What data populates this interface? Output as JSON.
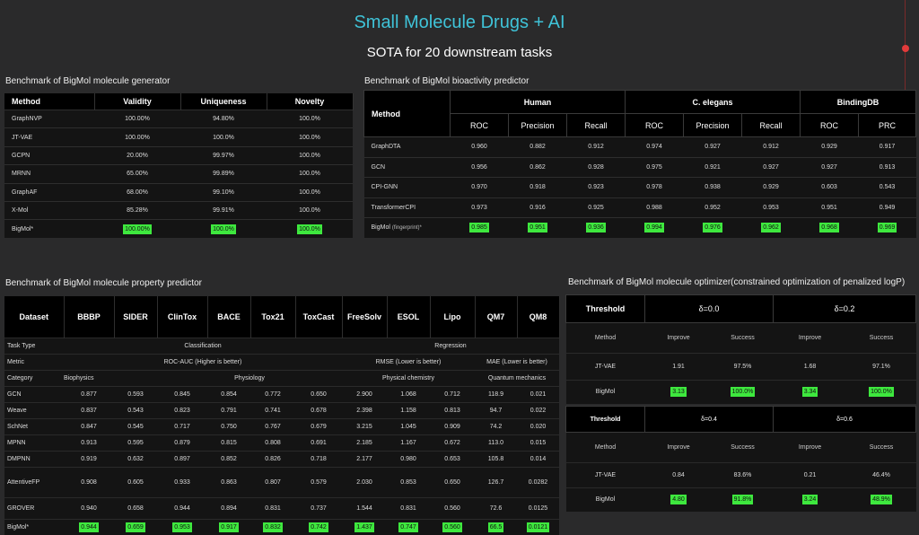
{
  "header": {
    "title": "Small Molecule Drugs + AI",
    "subtitle": "SOTA for 20 downstream tasks"
  },
  "colors": {
    "title": "#3fc3d8",
    "highlight": "#3ee83e",
    "scrubber": "#e23b3b"
  },
  "generator": {
    "label": "Benchmark of BigMol molecule generator",
    "columns": [
      "Method",
      "Validity",
      "Uniqueness",
      "Novelty"
    ],
    "rows": [
      {
        "cells": [
          "GraphNVP",
          "100.00%",
          "94.80%",
          "100.0%"
        ]
      },
      {
        "cells": [
          "JT-VAE",
          "100.00%",
          "100.0%",
          "100.0%"
        ]
      },
      {
        "cells": [
          "GCPN",
          "20.00%",
          "99.97%",
          "100.0%"
        ]
      },
      {
        "cells": [
          "MRNN",
          "65.00%",
          "99.89%",
          "100.0%"
        ]
      },
      {
        "cells": [
          "GraphAF",
          "68.00%",
          "99.10%",
          "100.0%"
        ]
      },
      {
        "cells": [
          "X-Mol",
          "85.28%",
          "99.91%",
          "100.0%"
        ]
      },
      {
        "cells": [
          "BigMol*",
          "100.00%",
          "100.0%",
          "100.0%"
        ]
      }
    ]
  },
  "bio": {
    "label": "Benchmark of BigMol bioactivity predictor",
    "method_header": "Method",
    "groups": [
      "Human",
      "C. elegans",
      "BindingDB"
    ],
    "metrics": [
      "ROC",
      "Precision",
      "Recall",
      "ROC",
      "Precision",
      "Recall",
      "ROC",
      "PRC"
    ],
    "rows": [
      {
        "cells": [
          "GraphDTA",
          "0.960",
          "0.882",
          "0.912",
          "0.974",
          "0.927",
          "0.912",
          "0.929",
          "0.917"
        ]
      },
      {
        "cells": [
          "GCN",
          "0.956",
          "0.862",
          "0.928",
          "0.975",
          "0.921",
          "0.927",
          "0.927",
          "0.913"
        ]
      },
      {
        "cells": [
          "CPI-GNN",
          "0.970",
          "0.918",
          "0.923",
          "0.978",
          "0.938",
          "0.929",
          "0.603",
          "0.543"
        ]
      },
      {
        "cells": [
          "TransformerCPI",
          "0.973",
          "0.916",
          "0.925",
          "0.988",
          "0.952",
          "0.953",
          "0.951",
          "0.949"
        ]
      }
    ],
    "bigmol": {
      "name": "BigMol",
      "suffix": "(fingerprint)*",
      "values": [
        "0.985",
        "0.951",
        "0.936",
        "0.994",
        "0.976",
        "0.962",
        "0.968",
        "0.969"
      ]
    }
  },
  "prop": {
    "label": "Benchmark of BigMol molecule property predictor",
    "columns": [
      "Dataset",
      "BBBP",
      "SIDER",
      "ClinTox",
      "BACE",
      "Tox21",
      "ToxCast",
      "FreeSolv",
      "ESOL",
      "Lipo",
      "QM7",
      "QM8"
    ],
    "task_type": {
      "label": "Task Type",
      "classification": "Classification",
      "regression": "Regression"
    },
    "metric": {
      "label": "Metric",
      "class_metric": "ROC-AUC (Higher is better)",
      "rmse": "RMSE (Lower is better)",
      "mae": "MAE (Lower is better)"
    },
    "category": {
      "label": "Category",
      "biophysics": "Biophysics",
      "physiology": "Physiology",
      "physchem": "Physical chemistry",
      "quantum": "Quantum mechanics"
    },
    "rows": [
      {
        "cells": [
          "GCN",
          "0.877",
          "0.593",
          "0.845",
          "0.854",
          "0.772",
          "0.650",
          "2.900",
          "1.068",
          "0.712",
          "118.9",
          "0.021"
        ]
      },
      {
        "cells": [
          "Weave",
          "0.837",
          "0.543",
          "0.823",
          "0.791",
          "0.741",
          "0.678",
          "2.398",
          "1.158",
          "0.813",
          "94.7",
          "0.022"
        ]
      },
      {
        "cells": [
          "SchNet",
          "0.847",
          "0.545",
          "0.717",
          "0.750",
          "0.767",
          "0.679",
          "3.215",
          "1.045",
          "0.909",
          "74.2",
          "0.020"
        ]
      },
      {
        "cells": [
          "MPNN",
          "0.913",
          "0.595",
          "0.879",
          "0.815",
          "0.808",
          "0.691",
          "2.185",
          "1.167",
          "0.672",
          "113.0",
          "0.015"
        ]
      },
      {
        "cells": [
          "DMPNN",
          "0.919",
          "0.632",
          "0.897",
          "0.852",
          "0.826",
          "0.718",
          "2.177",
          "0.980",
          "0.653",
          "105.8",
          "0.014"
        ]
      },
      {
        "cells": [
          "AttentiveFP",
          "0.908",
          "0.605",
          "0.933",
          "0.863",
          "0.807",
          "0.579",
          "2.030",
          "0.853",
          "0.650",
          "126.7",
          "0.0282"
        ]
      },
      {
        "cells": [
          "GROVER",
          "0.940",
          "0.658",
          "0.944",
          "0.894",
          "0.831",
          "0.737",
          "1.544",
          "0.831",
          "0.560",
          "72.6",
          "0.0125"
        ]
      },
      {
        "cells": [
          "BigMol*",
          "0.944",
          "0.659",
          "0.953",
          "0.917",
          "0.832",
          "0.742",
          "1.437",
          "0.747",
          "0.560",
          "66.5",
          "0.0121"
        ]
      }
    ]
  },
  "opt": {
    "label": "Benchmark of BigMol molecule optimizer(constrained optimization of penalized logP)",
    "block1": {
      "threshold": "Threshold",
      "d1": "δ=0.0",
      "d2": "δ=0.2",
      "sub": [
        "Method",
        "Improve",
        "Success",
        "Improve",
        "Success"
      ],
      "rows": [
        {
          "cells": [
            "JT-VAE",
            "1.91",
            "97.5%",
            "1.68",
            "97.1%"
          ]
        },
        {
          "cells": [
            "BigMol",
            "3.13",
            "100.0%",
            "3.34",
            "100.0%"
          ]
        }
      ]
    },
    "block2": {
      "threshold": "Threshold",
      "d1": "δ=0.4",
      "d2": "δ=0.6",
      "sub": [
        "Method",
        "Improve",
        "Success",
        "Improve",
        "Success"
      ],
      "rows": [
        {
          "cells": [
            "JT-VAE",
            "0.84",
            "83.6%",
            "0.21",
            "46.4%"
          ]
        },
        {
          "cells": [
            "BigMol",
            "4.80",
            "91.8%",
            "3.24",
            "48.9%"
          ]
        }
      ]
    }
  }
}
